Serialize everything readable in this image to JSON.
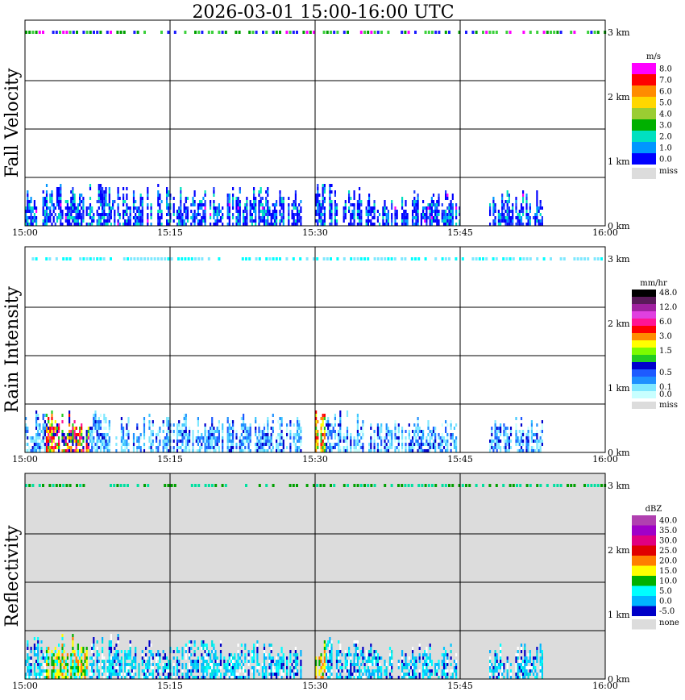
{
  "title": "2026-03-01   15:00-16:00 UTC",
  "chart_data": {
    "type": "heatmap",
    "title": "2026-03-01   15:00-16:00 UTC",
    "x_ticks": [
      "15:00",
      "15:15",
      "15:30",
      "15:45",
      "16:00"
    ],
    "x_range": [
      "15:00",
      "16:00"
    ],
    "y_ticks": [
      "0 km",
      "1 km",
      "2 km",
      "3 km"
    ],
    "grid": true,
    "panels": [
      {
        "name": "fall-velocity",
        "ylabel": "Fall Velocity",
        "unit": "m/s",
        "background": "#ffffff",
        "colorbar": [
          {
            "label": "8.0",
            "color": "#ff00ff"
          },
          {
            "label": "7.0",
            "color": "#ff0000"
          },
          {
            "label": "6.0",
            "color": "#ff8c00"
          },
          {
            "label": "5.0",
            "color": "#ffd700"
          },
          {
            "label": "4.0",
            "color": "#9acd32"
          },
          {
            "label": "3.0",
            "color": "#00b000"
          },
          {
            "label": "2.0",
            "color": "#00e0c0"
          },
          {
            "label": "1.0",
            "color": "#0096ff"
          },
          {
            "label": "0.0",
            "color": "#0000ff"
          }
        ],
        "missing_label": "miss",
        "top_band_colors": [
          "#00a000",
          "#3cd03c",
          "#ff00ff",
          "#1a1aff"
        ],
        "field_colors": [
          "#0000ff",
          "#0000ff",
          "#0000ff",
          "#1e3cff",
          "#0096ff",
          "#00e0c0"
        ],
        "outlier_color": "#ff00ff",
        "echo_extent": [
          {
            "start": 0.0,
            "end": 15.0,
            "top_km": 0.85
          },
          {
            "start": 15.3,
            "end": 28.5,
            "top_km": 0.8
          },
          {
            "start": 30.0,
            "end": 35.5,
            "top_km": 0.85
          },
          {
            "start": 35.5,
            "end": 45.0,
            "top_km": 0.7
          },
          {
            "start": 48.0,
            "end": 53.5,
            "top_km": 0.72
          }
        ]
      },
      {
        "name": "rain-intensity",
        "ylabel": "Rain Intensity",
        "unit": "mm/hr",
        "background": "#ffffff",
        "colorbar": [
          {
            "label": "48.0",
            "color": "#000000"
          },
          {
            "label": "",
            "color": "#5a1a5a"
          },
          {
            "label": "12.0",
            "color": "#a020a0"
          },
          {
            "label": "",
            "color": "#e040e0"
          },
          {
            "label": "6.0",
            "color": "#ff1493"
          },
          {
            "label": "",
            "color": "#ff0000"
          },
          {
            "label": "3.0",
            "color": "#ff8c00"
          },
          {
            "label": "",
            "color": "#ffff00"
          },
          {
            "label": "1.5",
            "color": "#7cfc00"
          },
          {
            "label": "",
            "color": "#22cc22"
          },
          {
            "label": "",
            "color": "#0000cc"
          },
          {
            "label": "0.5",
            "color": "#1e5aff"
          },
          {
            "label": "",
            "color": "#1e90ff"
          },
          {
            "label": "0.1",
            "color": "#80e8ff"
          },
          {
            "label": "0.0",
            "color": "#c8ffff"
          }
        ],
        "missing_label": "miss",
        "top_band_colors": [
          "#7fe8ff",
          "#00ffff"
        ],
        "field_colors": [
          "#c8ffff",
          "#80e8ff",
          "#80e8ff",
          "#40c8ff",
          "#1e90ff",
          "#1e5aff",
          "#0000cc"
        ],
        "core": {
          "start": 2.0,
          "end": 6.5,
          "colors": [
            "#0000cc",
            "#22cc22",
            "#ffff00",
            "#ff8c00",
            "#ff0000",
            "#ff1493"
          ]
        },
        "core2": {
          "start": 29.8,
          "end": 31.0,
          "colors": [
            "#22cc22",
            "#ffff00",
            "#ff8c00",
            "#ff0000"
          ]
        },
        "echo_extent": [
          {
            "start": 0.0,
            "end": 15.0,
            "top_km": 0.85
          },
          {
            "start": 15.3,
            "end": 28.5,
            "top_km": 0.8
          },
          {
            "start": 30.0,
            "end": 35.0,
            "top_km": 0.85
          },
          {
            "start": 35.5,
            "end": 44.5,
            "top_km": 0.7
          },
          {
            "start": 48.0,
            "end": 53.5,
            "top_km": 0.72
          }
        ]
      },
      {
        "name": "reflectivity",
        "ylabel": "Reflectivity",
        "unit": "dBZ",
        "background": "#dcdcdc",
        "colorbar": [
          {
            "label": "40.0",
            "color": "#b040b0"
          },
          {
            "label": "35.0",
            "color": "#a000c8"
          },
          {
            "label": "30.0",
            "color": "#e00080"
          },
          {
            "label": "25.0",
            "color": "#e00000"
          },
          {
            "label": "20.0",
            "color": "#ff7f00"
          },
          {
            "label": "15.0",
            "color": "#ffff00"
          },
          {
            "label": "10.0",
            "color": "#00b000"
          },
          {
            "label": "5.0",
            "color": "#00ffff"
          },
          {
            "label": "0.0",
            "color": "#00b4ff"
          },
          {
            "label": "-5.0",
            "color": "#0000c8"
          }
        ],
        "missing_label": "none",
        "top_band_colors": [
          "#00a000",
          "#00e0a0"
        ],
        "field_colors": [
          "#00b4ff",
          "#00ffff",
          "#00e0e0",
          "#00c8ff",
          "#0000c8",
          "#ffffff"
        ],
        "core": {
          "start": 2.0,
          "end": 6.5,
          "colors": [
            "#00b000",
            "#ffff00",
            "#ff7f00",
            "#00ffff"
          ]
        },
        "core2": {
          "start": 29.8,
          "end": 31.0,
          "colors": [
            "#00b000",
            "#ffff00",
            "#ff7f00"
          ]
        },
        "echo_extent": [
          {
            "start": 0.0,
            "end": 15.0,
            "top_km": 0.9
          },
          {
            "start": 15.3,
            "end": 28.5,
            "top_km": 0.8
          },
          {
            "start": 30.0,
            "end": 35.5,
            "top_km": 0.85
          },
          {
            "start": 35.5,
            "end": 44.5,
            "top_km": 0.72
          },
          {
            "start": 48.0,
            "end": 53.5,
            "top_km": 0.72
          }
        ]
      }
    ]
  }
}
